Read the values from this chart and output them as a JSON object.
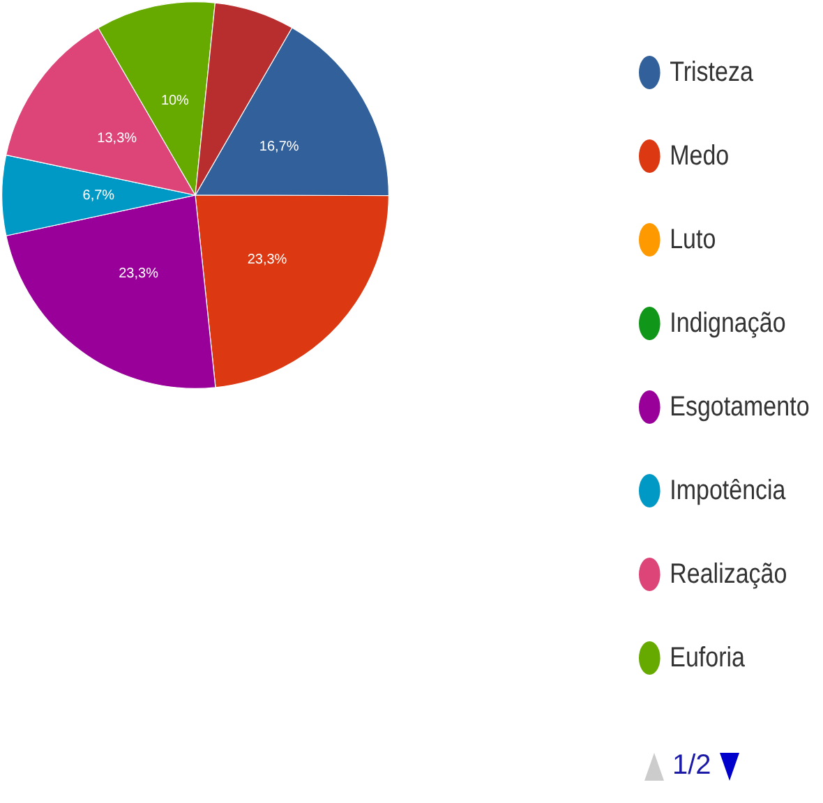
{
  "chart_data": {
    "type": "pie",
    "categories": [
      "Tristeza",
      "Medo",
      "Luto",
      "Indignação",
      "Esgotamento",
      "Impotência",
      "Realização",
      "Euforia",
      null
    ],
    "values": [
      16.7,
      23.3,
      0,
      0,
      23.3,
      6.7,
      13.3,
      10,
      6.7
    ],
    "colors": [
      "#32609a",
      "#dc3912",
      "#ff9900",
      "#109618",
      "#990099",
      "#0099c6",
      "#dd4477",
      "#66aa00",
      "#b82e2e"
    ],
    "value_labels": [
      "16,7%",
      "23,3%",
      null,
      null,
      "23,3%",
      "6,7%",
      "13,3%",
      "10%",
      null
    ],
    "legend": "right",
    "annotations": [
      "1/2"
    ]
  }
}
